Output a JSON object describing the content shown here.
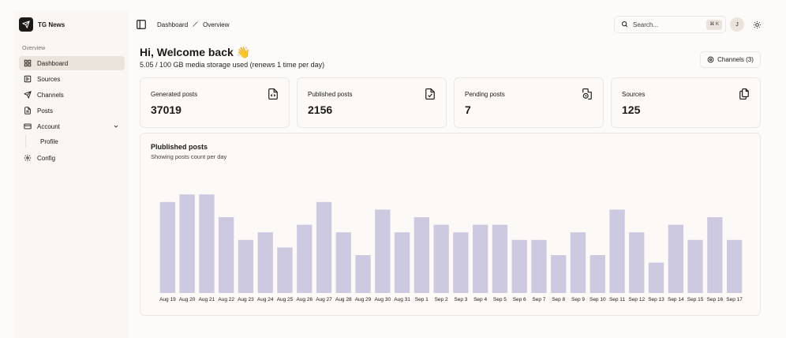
{
  "brand": {
    "name": "TG News",
    "logo_icon": "paper-plane-icon"
  },
  "sidebar": {
    "caption": "Overview",
    "items": [
      {
        "label": "Dashboard",
        "icon": "dashboard-grid-icon",
        "active": true
      },
      {
        "label": "Sources",
        "icon": "sources-icon"
      },
      {
        "label": "Channels",
        "icon": "send-icon"
      },
      {
        "label": "Posts",
        "icon": "file-text-icon"
      },
      {
        "label": "Account",
        "icon": "card-icon",
        "expanded": true
      },
      {
        "label": "Config",
        "icon": "gear-icon"
      }
    ],
    "account_sub": [
      "Profile"
    ]
  },
  "header": {
    "breadcrumb": [
      "Dashboard",
      "Overview"
    ],
    "search_placeholder": "Search...",
    "shortcut": "⌘ K",
    "avatar_initial": "J"
  },
  "main": {
    "welcome": "Hi, Welcome back 👋",
    "storage": "5.05 / 100 GB media storage used (renews 1 time per day)",
    "channels_button": "Channels (3)"
  },
  "stats": [
    {
      "label": "Generated posts",
      "value": "37019",
      "icon": "file-code-icon"
    },
    {
      "label": "Published posts",
      "value": "2156",
      "icon": "file-check-icon"
    },
    {
      "label": "Pending posts",
      "value": "7",
      "icon": "file-clock-icon"
    },
    {
      "label": "Sources",
      "value": "125",
      "icon": "files-icon"
    }
  ],
  "chart": {
    "title": "Plublished posts",
    "subtitle": "Showing posts count per day"
  },
  "chart_data": {
    "type": "bar",
    "categories": [
      "Aug 19",
      "Aug 20",
      "Aug 21",
      "Aug 22",
      "Aug 23",
      "Aug 24",
      "Aug 25",
      "Aug 26",
      "Aug 27",
      "Aug 28",
      "Aug 29",
      "Aug 30",
      "Aug 31",
      "Sep 1",
      "Sep 2",
      "Sep 3",
      "Sep 4",
      "Sep 5",
      "Sep 6",
      "Sep 7",
      "Sep 8",
      "Sep 9",
      "Sep 10",
      "Sep 11",
      "Sep 12",
      "Sep 13",
      "Sep 14",
      "Sep 15",
      "Sep 16",
      "Sep 17"
    ],
    "values": [
      12,
      13,
      13,
      10,
      7,
      8,
      6,
      9,
      12,
      8,
      5,
      11,
      8,
      10,
      9,
      8,
      9,
      9,
      7,
      7,
      5,
      8,
      5,
      11,
      8,
      4,
      9,
      7,
      10,
      7
    ],
    "ylim": [
      0,
      15
    ],
    "bar_color": "#cdc9e0",
    "grid": false,
    "legend": "none"
  }
}
